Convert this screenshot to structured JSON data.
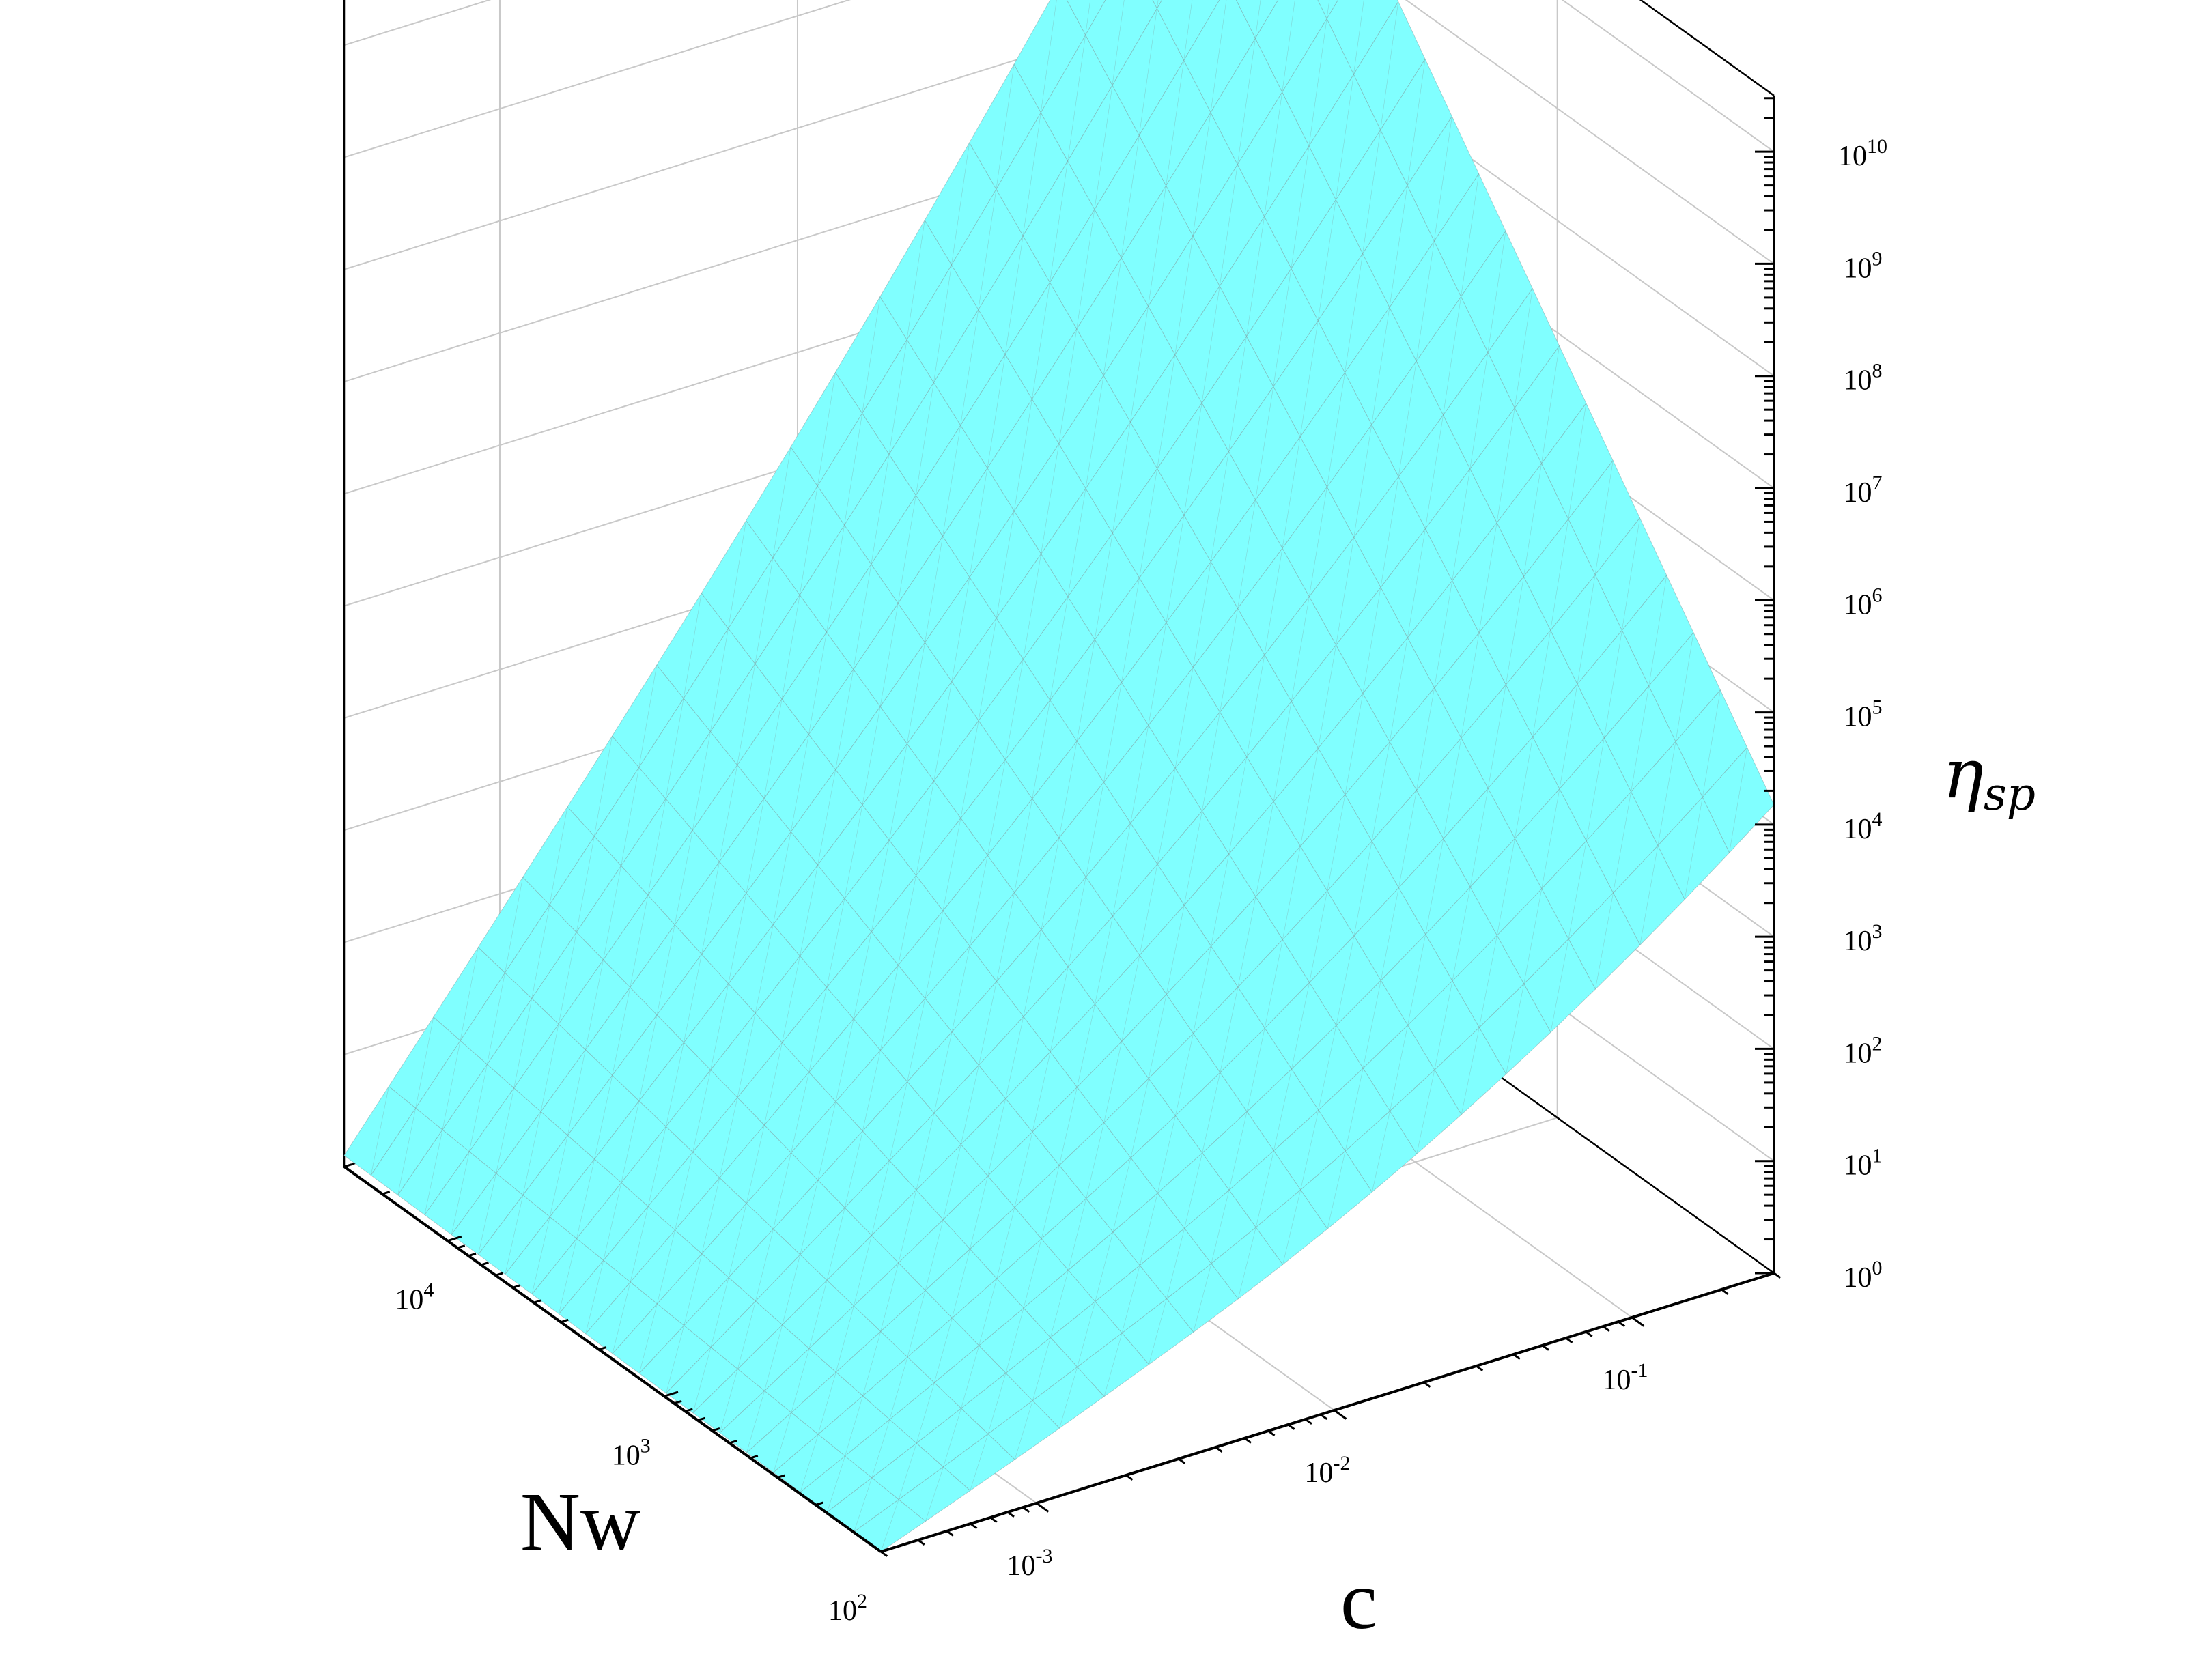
{
  "chart_data": {
    "type": "surface",
    "surface_color": "#80FFFF",
    "mesh_color": "#7F9FA0",
    "grid_color": "#C8C8C8",
    "axes": {
      "Nw": {
        "label": "Nw",
        "scale": "log",
        "range": [
          100,
          30000
        ],
        "ticks": [
          {
            "value": 100,
            "base": "10",
            "exp": "2"
          },
          {
            "value": 1000,
            "base": "10",
            "exp": "3"
          },
          {
            "value": 10000,
            "base": "10",
            "exp": "4"
          }
        ]
      },
      "c": {
        "label": "c",
        "scale": "log",
        "range": [
          0.0003,
          0.3
        ],
        "ticks": [
          {
            "value": 0.001,
            "base": "10",
            "exp": "-3"
          },
          {
            "value": 0.01,
            "base": "10",
            "exp": "-2"
          },
          {
            "value": 0.1,
            "base": "10",
            "exp": "-1"
          }
        ]
      },
      "eta": {
        "label_main": "η",
        "label_sub": "sp",
        "scale": "log",
        "range": [
          1,
          31623
        ],
        "ticks": [
          {
            "value": 1,
            "base": "10",
            "exp": "0"
          },
          {
            "value": 10,
            "base": "10",
            "exp": "1"
          },
          {
            "value": 100,
            "base": "10",
            "exp": "2"
          },
          {
            "value": 1000,
            "base": "10",
            "exp": "3"
          },
          {
            "value": 10000,
            "base": "10",
            "exp": "4"
          },
          {
            "value": 100000,
            "base": "10",
            "exp": "5"
          },
          {
            "value": 1000000,
            "base": "10",
            "exp": "6"
          },
          {
            "value": 10000000,
            "base": "10",
            "exp": "7"
          },
          {
            "value": 100000000,
            "base": "10",
            "exp": "8"
          },
          {
            "value": 1000000000,
            "base": "10",
            "exp": "9"
          },
          {
            "value": 10000000000,
            "base": "10",
            "exp": "10"
          }
        ]
      }
    },
    "surface": {
      "description_of_values": "eta_sp at grid corners (log10 units)",
      "Nw_min_c_min": 0,
      "Nw_max_c_min": 0.1,
      "Nw_min_c_max": 3.5,
      "Nw_max_c_max": 10.5,
      "Nw_max_c_1e-3": 3.4
    }
  }
}
